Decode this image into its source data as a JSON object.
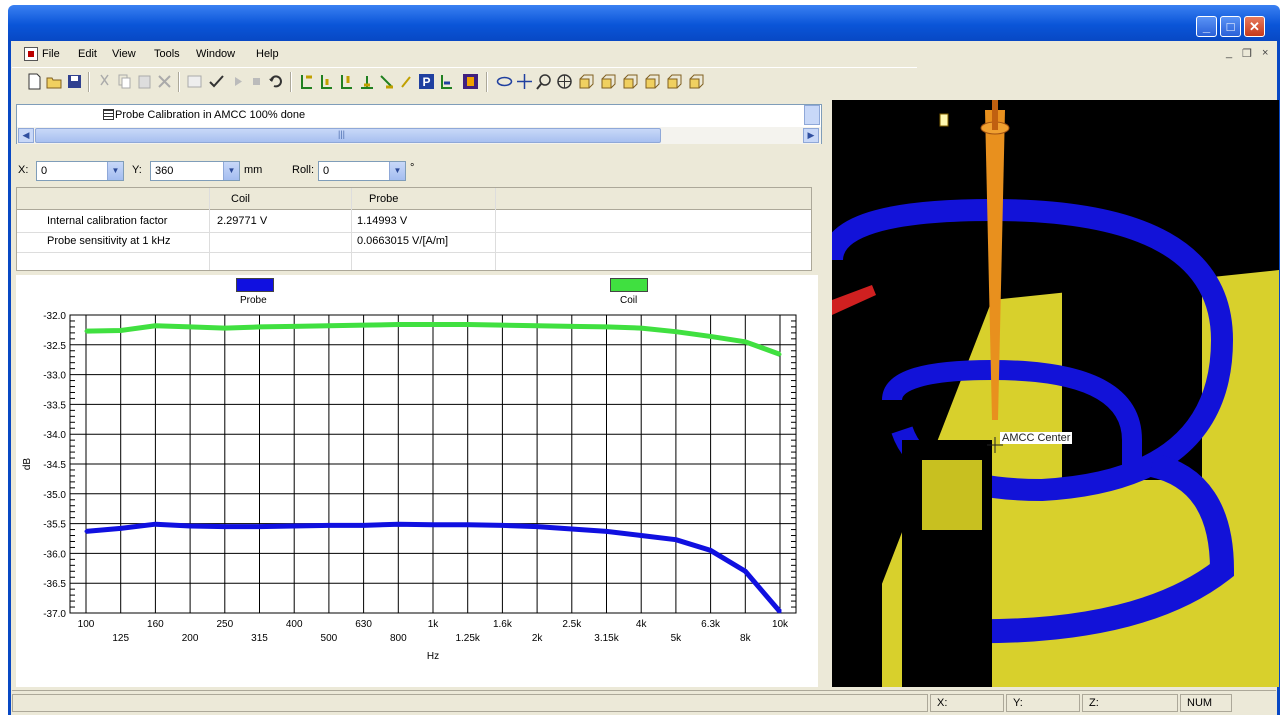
{
  "window": {
    "minimize_glyph": "_",
    "maximize_glyph": "□",
    "close_glyph": "✕"
  },
  "menu": {
    "items": [
      "File",
      "Edit",
      "View",
      "Tools",
      "Window",
      "Help"
    ],
    "mdi_minimize": "_",
    "mdi_restore": "❐",
    "mdi_close": "×"
  },
  "toolbar": {
    "icons": [
      "new-document-icon",
      "open-folder-icon",
      "save-icon",
      "cut-icon",
      "copy-icon",
      "paste-icon",
      "delete-icon",
      "properties-icon",
      "check-icon",
      "play-icon",
      "stop-icon",
      "undo-icon",
      "probe-align-icon",
      "probe-move-up-icon",
      "probe-move-icon",
      "probe-move-down-icon",
      "probe-tilt-icon",
      "probe-rotate-icon",
      "parking-icon",
      "probe-settings-icon",
      "record-icon",
      "rotate-view-icon",
      "pan-icon",
      "zoom-icon",
      "zoom-all-icon",
      "view-front-icon",
      "view-back-icon",
      "view-left-icon",
      "view-right-icon",
      "view-top-icon",
      "view-bottom-icon"
    ]
  },
  "tree": {
    "item_label": "Probe Calibration in AMCC 100% done",
    "scroll_marker": "|||"
  },
  "position": {
    "x_label": "X:",
    "x_value": "0",
    "y_label": "Y:",
    "y_value": "360",
    "unit": "mm",
    "roll_label": "Roll:",
    "roll_value": "0",
    "roll_unit": "°"
  },
  "calibration_table": {
    "columns": [
      "",
      "Coil",
      "Probe"
    ],
    "rows": [
      [
        "Internal calibration factor",
        "2.29771 V",
        "1.14993 V"
      ],
      [
        "Probe sensitivity at 1 kHz",
        "",
        "0.0663015 V/[A/m]"
      ]
    ]
  },
  "chart_data": {
    "type": "line",
    "x_categories": [
      "100",
      "125",
      "160",
      "200",
      "250",
      "315",
      "400",
      "500",
      "630",
      "800",
      "1k",
      "1.25k",
      "1.6k",
      "2k",
      "2.5k",
      "3.15k",
      "4k",
      "5k",
      "6.3k",
      "8k",
      "10k"
    ],
    "xlabel": "Hz",
    "ylabel": "dB",
    "ylim": [
      -37.0,
      -32.0
    ],
    "yticks": [
      "-32.0",
      "-32.5",
      "-33.0",
      "-33.5",
      "-34.0",
      "-34.5",
      "-35.0",
      "-35.5",
      "-36.0",
      "-36.5",
      "-37.0"
    ],
    "grid": true,
    "legend_placement": "top",
    "series": [
      {
        "name": "Probe",
        "color": "#1010e0",
        "values": [
          -35.63,
          -35.58,
          -35.51,
          -35.54,
          -35.55,
          -35.55,
          -35.54,
          -35.53,
          -35.53,
          -35.51,
          -35.52,
          -35.52,
          -35.53,
          -35.55,
          -35.59,
          -35.63,
          -35.7,
          -35.77,
          -35.95,
          -36.3,
          -36.98
        ]
      },
      {
        "name": "Coil",
        "color": "#40e040",
        "values": [
          -32.27,
          -32.26,
          -32.18,
          -32.2,
          -32.22,
          -32.2,
          -32.19,
          -32.18,
          -32.17,
          -32.16,
          -32.16,
          -32.16,
          -32.17,
          -32.18,
          -32.19,
          -32.2,
          -32.22,
          -32.28,
          -32.36,
          -32.45,
          -32.66
        ]
      }
    ]
  },
  "view3d": {
    "marker_label": "AMCC Center",
    "colors": {
      "ring": "#1212d8",
      "floor": "#d8d02c",
      "probe": "#e8901e",
      "background": "#000000"
    }
  },
  "status": {
    "x": "X:",
    "y": "Y:",
    "z": "Z:",
    "num": "NUM"
  }
}
